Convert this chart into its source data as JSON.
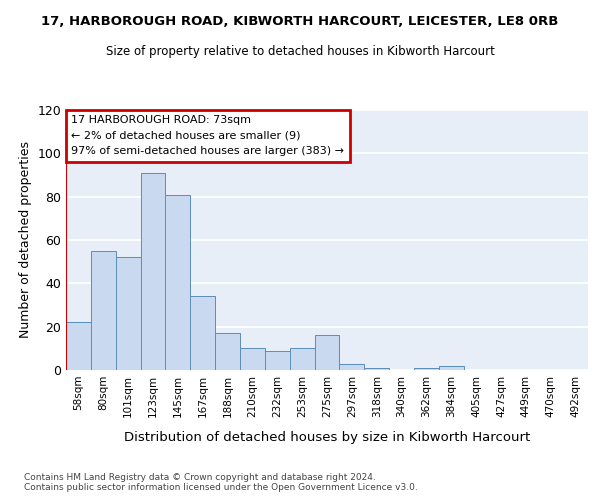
{
  "title1": "17, HARBOROUGH ROAD, KIBWORTH HARCOURT, LEICESTER, LE8 0RB",
  "title2": "Size of property relative to detached houses in Kibworth Harcourt",
  "xlabel": "Distribution of detached houses by size in Kibworth Harcourt",
  "ylabel": "Number of detached properties",
  "categories": [
    "58sqm",
    "80sqm",
    "101sqm",
    "123sqm",
    "145sqm",
    "167sqm",
    "188sqm",
    "210sqm",
    "232sqm",
    "253sqm",
    "275sqm",
    "297sqm",
    "318sqm",
    "340sqm",
    "362sqm",
    "384sqm",
    "405sqm",
    "427sqm",
    "449sqm",
    "470sqm",
    "492sqm"
  ],
  "values": [
    22,
    55,
    52,
    91,
    81,
    34,
    17,
    10,
    9,
    10,
    16,
    3,
    1,
    0,
    1,
    2,
    0,
    0,
    0,
    0,
    0
  ],
  "bar_color": "#c9d9f0",
  "bar_edge_color": "#5b8db8",
  "bg_color": "#e8eef8",
  "grid_color": "#ffffff",
  "annotation_line1": "17 HARBOROUGH ROAD: 73sqm",
  "annotation_line2": "← 2% of detached houses are smaller (9)",
  "annotation_line3": "97% of semi-detached houses are larger (383) →",
  "annotation_box_color": "#ffffff",
  "annotation_box_edge": "#cc0000",
  "marker_line_color": "#cc0000",
  "ylim": [
    0,
    120
  ],
  "yticks": [
    0,
    20,
    40,
    60,
    80,
    100,
    120
  ],
  "footer1": "Contains HM Land Registry data © Crown copyright and database right 2024.",
  "footer2": "Contains public sector information licensed under the Open Government Licence v3.0."
}
